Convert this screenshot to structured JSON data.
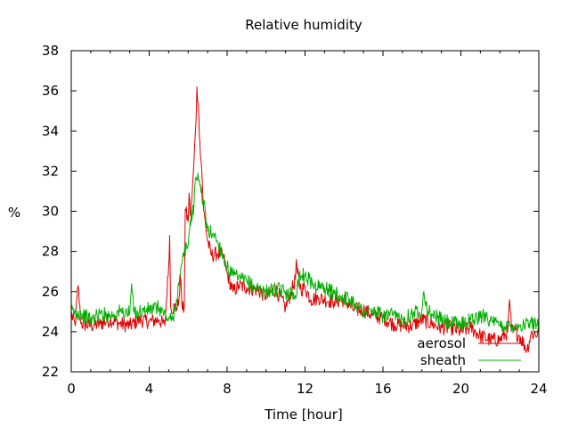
{
  "chart_data": {
    "type": "line",
    "title": "Relative humidity",
    "xlabel": "Time [hour]",
    "ylabel": "%",
    "xlim": [
      0,
      24
    ],
    "ylim": [
      22,
      38
    ],
    "x_ticks": [
      "0",
      "4",
      "8",
      "12",
      "16",
      "20",
      "24"
    ],
    "y_ticks": [
      "22",
      "24",
      "26",
      "28",
      "30",
      "32",
      "34",
      "36",
      "38"
    ],
    "legend_position": "bottom-right",
    "grid": false,
    "series": [
      {
        "name": "aerosol",
        "color": "#e00000",
        "points": [
          [
            0.0,
            24.9
          ],
          [
            0.2,
            24.3
          ],
          [
            0.35,
            26.3
          ],
          [
            0.5,
            24.4
          ],
          [
            1.0,
            24.3
          ],
          [
            1.5,
            24.4
          ],
          [
            2.0,
            24.6
          ],
          [
            2.5,
            24.4
          ],
          [
            3.0,
            24.3
          ],
          [
            3.5,
            24.6
          ],
          [
            4.0,
            24.5
          ],
          [
            4.5,
            24.6
          ],
          [
            4.8,
            24.3
          ],
          [
            5.0,
            27.3
          ],
          [
            5.05,
            28.8
          ],
          [
            5.1,
            25.2
          ],
          [
            5.3,
            25.2
          ],
          [
            5.5,
            25.3
          ],
          [
            5.6,
            26.8
          ],
          [
            5.7,
            25.1
          ],
          [
            5.8,
            25.2
          ],
          [
            5.85,
            30.1
          ],
          [
            6.0,
            29.5
          ],
          [
            6.05,
            30.9
          ],
          [
            6.1,
            29.8
          ],
          [
            6.2,
            30.7
          ],
          [
            6.3,
            32.5
          ],
          [
            6.4,
            34.4
          ],
          [
            6.45,
            36.2
          ],
          [
            6.55,
            34.7
          ],
          [
            6.6,
            33.5
          ],
          [
            6.7,
            32.0
          ],
          [
            6.8,
            30.0
          ],
          [
            7.0,
            28.5
          ],
          [
            7.2,
            27.8
          ],
          [
            7.5,
            27.9
          ],
          [
            7.8,
            27.8
          ],
          [
            8.0,
            26.9
          ],
          [
            8.3,
            26.0
          ],
          [
            8.6,
            26.3
          ],
          [
            9.0,
            26.2
          ],
          [
            9.5,
            26.1
          ],
          [
            10.0,
            25.8
          ],
          [
            10.5,
            26.1
          ],
          [
            11.0,
            25.2
          ],
          [
            11.3,
            26.0
          ],
          [
            11.5,
            26.6
          ],
          [
            11.55,
            27.6
          ],
          [
            11.6,
            26.9
          ],
          [
            11.8,
            26.1
          ],
          [
            12.0,
            26.2
          ],
          [
            12.3,
            25.6
          ],
          [
            12.7,
            25.7
          ],
          [
            13.0,
            25.6
          ],
          [
            13.5,
            25.5
          ],
          [
            14.0,
            25.6
          ],
          [
            14.5,
            25.1
          ],
          [
            15.0,
            25.1
          ],
          [
            15.5,
            24.8
          ],
          [
            16.0,
            24.7
          ],
          [
            16.5,
            24.4
          ],
          [
            17.0,
            24.3
          ],
          [
            17.5,
            24.3
          ],
          [
            18.0,
            24.6
          ],
          [
            18.5,
            24.4
          ],
          [
            19.0,
            24.2
          ],
          [
            19.5,
            24.2
          ],
          [
            20.0,
            24.0
          ],
          [
            20.5,
            24.2
          ],
          [
            21.0,
            23.8
          ],
          [
            21.5,
            23.6
          ],
          [
            22.0,
            23.6
          ],
          [
            22.4,
            24.0
          ],
          [
            22.5,
            25.6
          ],
          [
            22.6,
            24.1
          ],
          [
            23.0,
            23.8
          ],
          [
            23.4,
            23.1
          ],
          [
            23.6,
            23.9
          ],
          [
            24.0,
            23.9
          ]
        ]
      },
      {
        "name": "sheath",
        "color": "#00b000",
        "points": [
          [
            0.0,
            25.0
          ],
          [
            0.5,
            24.9
          ],
          [
            1.0,
            24.6
          ],
          [
            1.5,
            24.9
          ],
          [
            2.0,
            24.8
          ],
          [
            2.5,
            25.0
          ],
          [
            3.0,
            24.9
          ],
          [
            3.1,
            26.4
          ],
          [
            3.2,
            25.0
          ],
          [
            3.5,
            25.0
          ],
          [
            4.0,
            25.1
          ],
          [
            4.5,
            25.2
          ],
          [
            5.0,
            24.6
          ],
          [
            5.2,
            24.6
          ],
          [
            5.4,
            25.6
          ],
          [
            5.6,
            26.8
          ],
          [
            5.8,
            28.0
          ],
          [
            6.0,
            28.3
          ],
          [
            6.1,
            29.5
          ],
          [
            6.3,
            30.3
          ],
          [
            6.4,
            31.7
          ],
          [
            6.5,
            31.9
          ],
          [
            6.6,
            31.3
          ],
          [
            6.8,
            30.4
          ],
          [
            7.0,
            29.0
          ],
          [
            7.3,
            28.9
          ],
          [
            7.6,
            28.3
          ],
          [
            8.0,
            27.2
          ],
          [
            8.3,
            26.8
          ],
          [
            8.7,
            26.6
          ],
          [
            9.0,
            26.5
          ],
          [
            9.5,
            26.2
          ],
          [
            10.0,
            26.0
          ],
          [
            10.5,
            26.1
          ],
          [
            11.0,
            26.0
          ],
          [
            11.5,
            25.8
          ],
          [
            11.7,
            26.8
          ],
          [
            12.0,
            26.8
          ],
          [
            12.5,
            26.3
          ],
          [
            13.0,
            26.2
          ],
          [
            13.5,
            25.9
          ],
          [
            14.0,
            25.7
          ],
          [
            14.5,
            25.5
          ],
          [
            15.0,
            25.0
          ],
          [
            15.5,
            25.0
          ],
          [
            16.0,
            24.8
          ],
          [
            16.5,
            24.8
          ],
          [
            17.0,
            24.6
          ],
          [
            17.5,
            24.9
          ],
          [
            18.0,
            25.1
          ],
          [
            18.1,
            26.0
          ],
          [
            18.3,
            25.0
          ],
          [
            18.5,
            24.9
          ],
          [
            19.0,
            24.6
          ],
          [
            19.5,
            24.4
          ],
          [
            20.0,
            24.4
          ],
          [
            20.5,
            24.6
          ],
          [
            21.0,
            24.7
          ],
          [
            21.3,
            24.9
          ],
          [
            21.5,
            24.5
          ],
          [
            22.0,
            24.3
          ],
          [
            22.5,
            24.3
          ],
          [
            23.0,
            24.3
          ],
          [
            23.5,
            24.4
          ],
          [
            24.0,
            24.4
          ]
        ]
      }
    ]
  }
}
